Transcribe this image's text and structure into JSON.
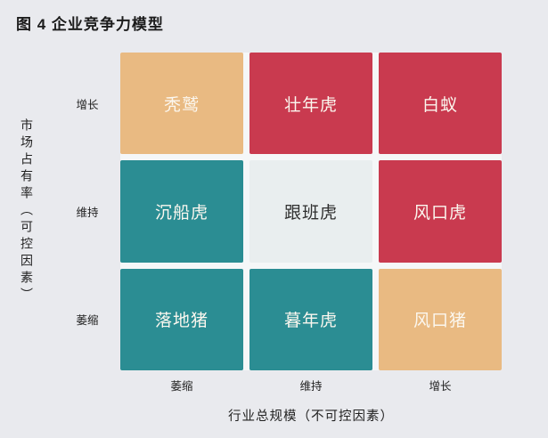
{
  "title": "图 4 企业竞争力模型",
  "colors": {
    "page_bg": "#e9eaee",
    "gap": "#f5f7f8",
    "red": "#c93a4f",
    "teal": "#2b8d93",
    "tan": "#e9ba82",
    "light_cell": "#e9eeef",
    "text_dark": "#222222",
    "text_light": "#fbf7ef"
  },
  "y_axis": {
    "label": "市场占有率（可控因素）",
    "ticks": [
      "增长",
      "维持",
      "萎缩"
    ]
  },
  "x_axis": {
    "label": "行业总规模（不可控因素）",
    "ticks": [
      "萎缩",
      "维持",
      "增长"
    ]
  },
  "matrix": {
    "cells": [
      {
        "label": "秃鹫",
        "bg": "#e9ba82",
        "fg": "#fbf7ef"
      },
      {
        "label": "壮年虎",
        "bg": "#c93a4f",
        "fg": "#fbf7ef"
      },
      {
        "label": "白蚁",
        "bg": "#c93a4f",
        "fg": "#fbf7ef"
      },
      {
        "label": "沉船虎",
        "bg": "#2b8d93",
        "fg": "#fbf7ef"
      },
      {
        "label": "跟班虎",
        "bg": "#e9eeef",
        "fg": "#2f2f2f"
      },
      {
        "label": "风口虎",
        "bg": "#c93a4f",
        "fg": "#fbf7ef"
      },
      {
        "label": "落地猪",
        "bg": "#2b8d93",
        "fg": "#fbf7ef"
      },
      {
        "label": "暮年虎",
        "bg": "#2b8d93",
        "fg": "#fbf7ef"
      },
      {
        "label": "风口猪",
        "bg": "#e9ba82",
        "fg": "#fbf7ef"
      }
    ]
  },
  "chart_data": {
    "type": "heatmap",
    "title": "图 4 企业竞争力模型",
    "xlabel": "行业总规模（不可控因素）",
    "ylabel": "市场占有率（可控因素）",
    "x_categories": [
      "萎缩",
      "维持",
      "增长"
    ],
    "y_categories": [
      "增长",
      "维持",
      "萎缩"
    ],
    "rows": [
      [
        {
          "label": "秃鹫",
          "color_key": "tan"
        },
        {
          "label": "壮年虎",
          "color_key": "red"
        },
        {
          "label": "白蚁",
          "color_key": "red"
        }
      ],
      [
        {
          "label": "沉船虎",
          "color_key": "teal"
        },
        {
          "label": "跟班虎",
          "color_key": "light"
        },
        {
          "label": "风口虎",
          "color_key": "red"
        }
      ],
      [
        {
          "label": "落地猪",
          "color_key": "teal"
        },
        {
          "label": "暮年虎",
          "color_key": "teal"
        },
        {
          "label": "风口猪",
          "color_key": "tan"
        }
      ]
    ],
    "legend": null,
    "grid": false
  }
}
